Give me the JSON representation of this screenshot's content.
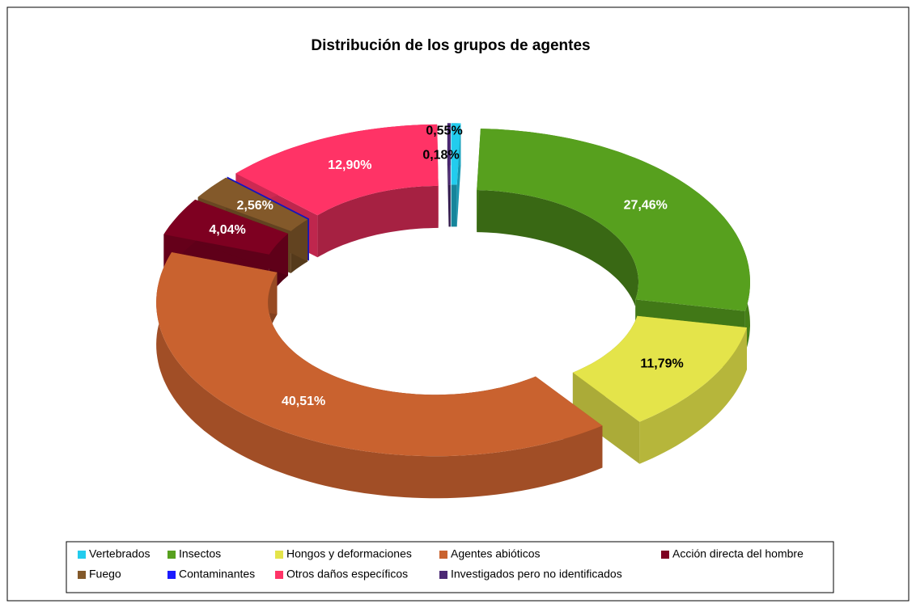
{
  "chart_data": {
    "type": "donut",
    "title": "Distribución de los grupos de agentes",
    "categories": [
      "Vertebrados",
      "Insectos",
      "Hongos y deformaciones",
      "Agentes abióticos",
      "Acción directa del hombre",
      "Fuego",
      "Contaminantes",
      "Otros daños específicos",
      "Investigados pero no identificados"
    ],
    "values": [
      0.55,
      27.46,
      11.79,
      40.51,
      4.04,
      2.56,
      0.01,
      12.9,
      0.18
    ],
    "value_labels": [
      "0,55%",
      "27,46%",
      "11,79%",
      "40,51%",
      "4,04%",
      "2,56%",
      null,
      "12,90%",
      "0,18%"
    ],
    "colors": [
      "#22ccee",
      "#57a01e",
      "#e4e44a",
      "#c9622f",
      "#7e0021",
      "#83592a",
      "#1a1aff",
      "#ff3366",
      "#4b2874"
    ],
    "legend": "bottom"
  }
}
